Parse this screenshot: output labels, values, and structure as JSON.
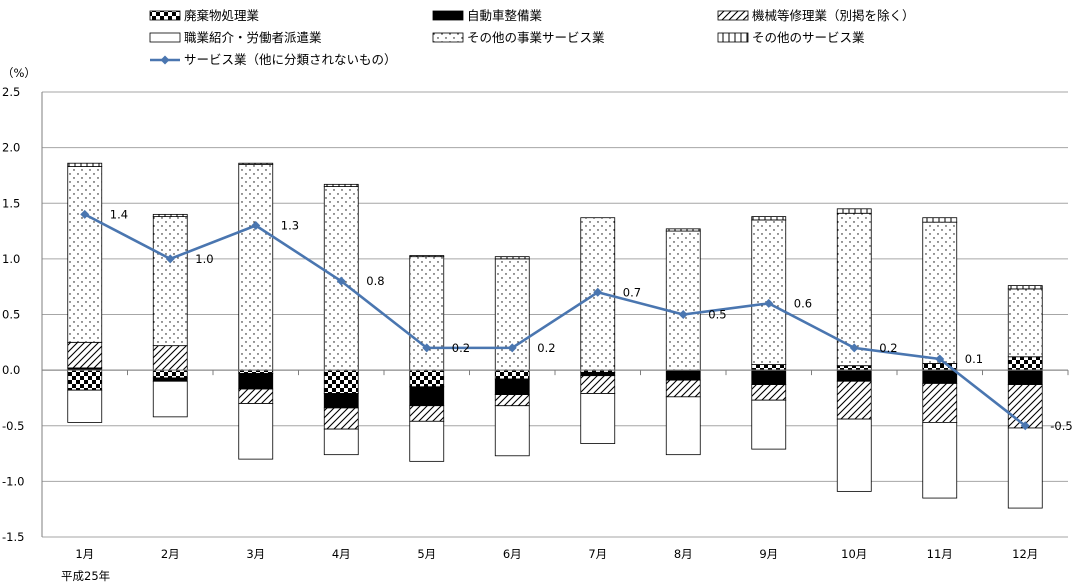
{
  "chart_data": {
    "type": "bar",
    "yunit": "（%）",
    "xnote": "平成25年",
    "ylim": [
      -1.5,
      2.5
    ],
    "yticks": [
      "2.5",
      "2.0",
      "1.5",
      "1.0",
      "0.5",
      "0.0",
      "-0.5",
      "-1.0",
      "-1.5"
    ],
    "categories": [
      "1月",
      "2月",
      "3月",
      "4月",
      "5月",
      "6月",
      "7月",
      "8月",
      "9月",
      "10月",
      "11月",
      "12月"
    ],
    "stacked": true,
    "series": [
      {
        "name": "廃棄物処理業",
        "pattern": "checker",
        "values": [
          -0.18,
          -0.07,
          -0.03,
          -0.21,
          -0.15,
          -0.08,
          -0.02,
          0.0,
          0.05,
          0.04,
          0.06,
          0.12
        ]
      },
      {
        "name": "自動車整備業",
        "pattern": "solid",
        "values": [
          0.02,
          -0.03,
          -0.14,
          -0.13,
          -0.17,
          -0.14,
          -0.03,
          -0.09,
          -0.13,
          -0.1,
          -0.12,
          -0.13
        ]
      },
      {
        "name": "機械等修理業（別掲を除く）",
        "pattern": "hatch",
        "values": [
          0.23,
          0.22,
          -0.13,
          -0.19,
          -0.14,
          -0.1,
          -0.16,
          -0.15,
          -0.14,
          -0.34,
          -0.35,
          -0.39
        ]
      },
      {
        "name": "職業紹介・労働者派遣業",
        "pattern": "blank",
        "values": [
          -0.29,
          -0.32,
          -0.5,
          -0.23,
          -0.36,
          -0.45,
          -0.45,
          -0.52,
          -0.44,
          -0.65,
          -0.68,
          -0.72
        ]
      },
      {
        "name": "その他の事業サービス業",
        "pattern": "dots",
        "values": [
          1.58,
          1.16,
          1.85,
          1.65,
          1.02,
          1.0,
          1.37,
          1.25,
          1.3,
          1.37,
          1.27,
          0.61
        ]
      },
      {
        "name": "その他のサービス業",
        "pattern": "vbars",
        "values": [
          0.03,
          0.02,
          0.01,
          0.02,
          0.01,
          0.02,
          0.0,
          0.02,
          0.03,
          0.04,
          0.04,
          0.03
        ]
      }
    ],
    "line": {
      "name": "サービス業（他に分類されないもの）",
      "color": "#4a76b0",
      "values": [
        1.4,
        1.0,
        1.3,
        0.8,
        0.2,
        0.2,
        0.7,
        0.5,
        0.6,
        0.2,
        0.1,
        -0.5
      ],
      "labels": [
        "1.4",
        "1.0",
        "1.3",
        "0.8",
        "0.2",
        "0.2",
        "0.7",
        "0.5",
        "0.6",
        "0.2",
        "0.1",
        "-0.5"
      ]
    },
    "grid": true,
    "legend_position": "top"
  }
}
